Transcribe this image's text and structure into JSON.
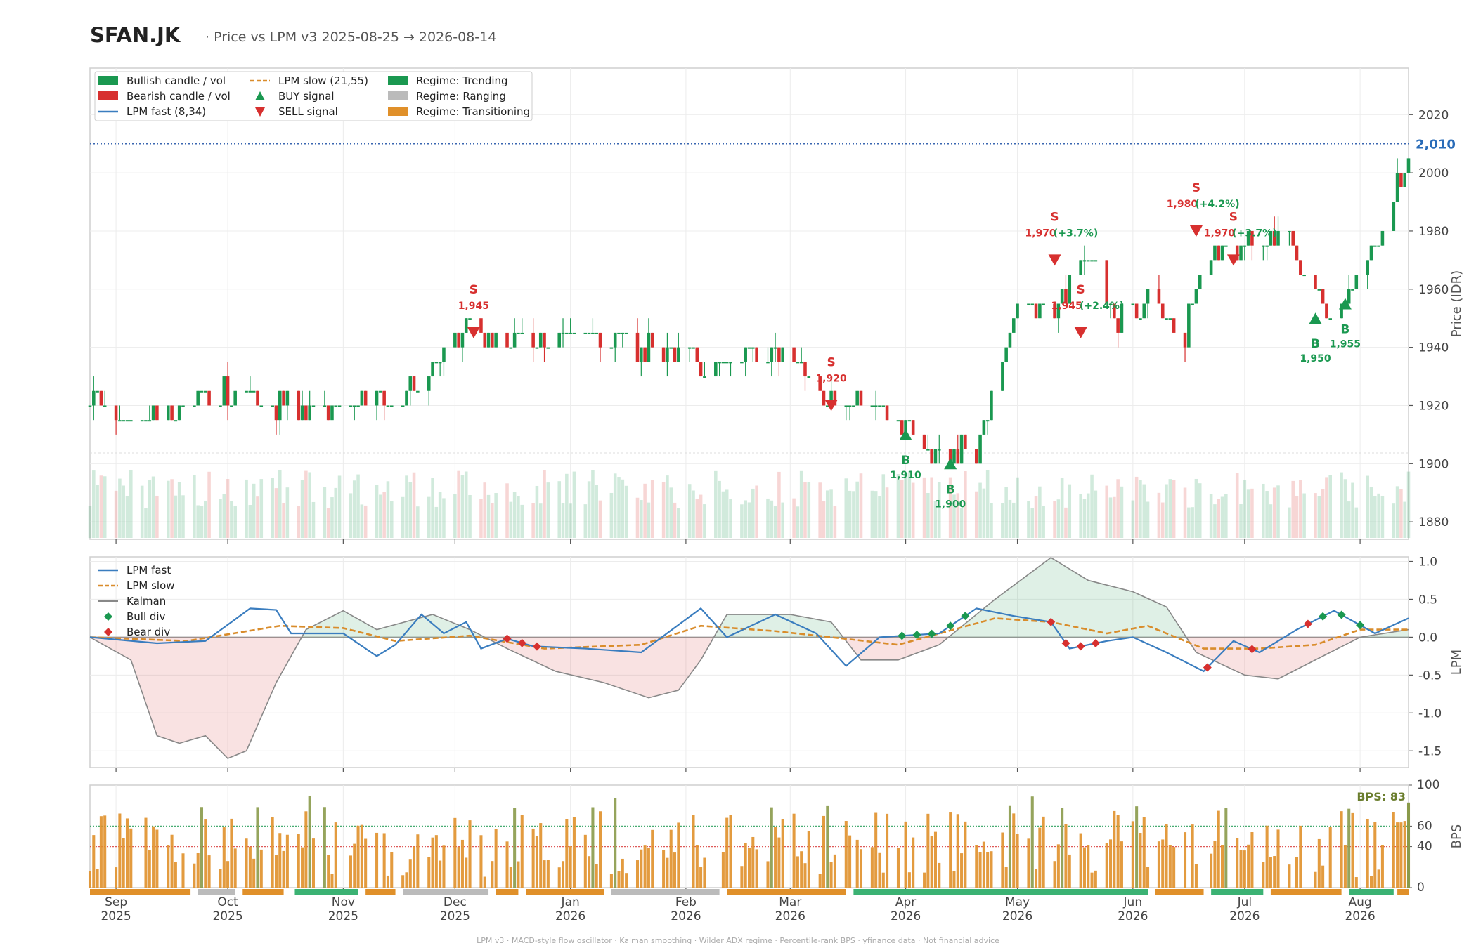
{
  "header": {
    "ticker": "SFAN.JK",
    "subtitle": "·  Price vs LPM v3  2025-08-25 → 2026-08-14"
  },
  "footer": "LPM v3  ·  MACD-style flow oscillator  ·  Kalman smoothing  ·  Wilder ADX regime  ·  Percentile-rank BPS  ·  yfinance data  ·  Not financial advice",
  "colors": {
    "bull": "#1a9850",
    "bear": "#d7302f",
    "fast": "#3a7dbf",
    "slow": "#d98c2b",
    "kalman": "#888888",
    "trending": "#3bb273",
    "ranging": "#bbbbbb",
    "transitioning": "#e0902a"
  },
  "legend_price": [
    {
      "label": "Bullish candle / vol",
      "icon": "green-rect"
    },
    {
      "label": "Bearish candle / vol",
      "icon": "red-rect"
    },
    {
      "label": "LPM fast (8,34)",
      "icon": "blue-line"
    },
    {
      "label": "LPM slow (21,55)",
      "icon": "orange-dashed-line"
    },
    {
      "label": "BUY signal",
      "icon": "green-triangle-up"
    },
    {
      "label": "SELL signal",
      "icon": "red-triangle-down"
    },
    {
      "label": "Regime: Trending",
      "icon": "green-rect"
    },
    {
      "label": "Regime: Ranging",
      "icon": "gray-rect"
    },
    {
      "label": "Regime: Transitioning",
      "icon": "orange-rect"
    }
  ],
  "legend_lpm": [
    {
      "label": "LPM fast",
      "icon": "blue-line"
    },
    {
      "label": "LPM slow",
      "icon": "orange-dashed-line"
    },
    {
      "label": "Kalman",
      "icon": "gray-line"
    },
    {
      "label": "Bull div",
      "icon": "green-diamond"
    },
    {
      "label": "Bear div",
      "icon": "red-diamond"
    }
  ],
  "last_price_label": "2,010",
  "bps_label": "BPS: 83",
  "chart_data": [
    {
      "type": "candlestick",
      "ylabel": "Price (IDR)",
      "ylim": [
        1874,
        2036
      ],
      "yticks": [
        1880,
        1900,
        1920,
        1940,
        1960,
        1980,
        2000,
        2020
      ],
      "last_price": 2010,
      "x_range": [
        "2025-08-25",
        "2026-08-14"
      ],
      "xticks": [
        {
          "month": "Sep",
          "year": "2025"
        },
        {
          "month": "Oct",
          "year": "2025"
        },
        {
          "month": "Nov",
          "year": "2025"
        },
        {
          "month": "Dec",
          "year": "2025"
        },
        {
          "month": "Jan",
          "year": "2026"
        },
        {
          "month": "Feb",
          "year": "2026"
        },
        {
          "month": "Mar",
          "year": "2026"
        },
        {
          "month": "Apr",
          "year": "2026"
        },
        {
          "month": "May",
          "year": "2026"
        },
        {
          "month": "Jun",
          "year": "2026"
        },
        {
          "month": "Jul",
          "year": "2026"
        },
        {
          "month": "Aug",
          "year": "2026"
        }
      ],
      "price_path": [
        [
          "2025-08-25",
          1920
        ],
        [
          "2025-09-10",
          1915
        ],
        [
          "2025-10-01",
          1925
        ],
        [
          "2025-10-25",
          1917
        ],
        [
          "2025-11-20",
          1925
        ],
        [
          "2025-12-01",
          1945
        ],
        [
          "2025-12-20",
          1943
        ],
        [
          "2026-01-15",
          1942
        ],
        [
          "2026-02-05",
          1935
        ],
        [
          "2026-03-01",
          1938
        ],
        [
          "2026-03-10",
          1922
        ],
        [
          "2026-03-28",
          1918
        ],
        [
          "2026-04-05",
          1905
        ],
        [
          "2026-04-20",
          1905
        ],
        [
          "2026-05-01",
          1955
        ],
        [
          "2026-05-12",
          1955
        ],
        [
          "2026-05-22",
          1970
        ],
        [
          "2026-05-28",
          1950
        ],
        [
          "2026-06-05",
          1955
        ],
        [
          "2026-06-15",
          1945
        ],
        [
          "2026-06-20",
          1975
        ],
        [
          "2026-06-30",
          1975
        ],
        [
          "2026-07-10",
          1980
        ],
        [
          "2026-07-20",
          1960
        ],
        [
          "2026-07-25",
          1950
        ],
        [
          "2026-08-01",
          1965
        ],
        [
          "2026-08-05",
          1975
        ],
        [
          "2026-08-10",
          1990
        ],
        [
          "2026-08-14",
          2010
        ]
      ],
      "signals": [
        {
          "type": "SELL",
          "date": "2025-12-06",
          "price": 1945,
          "letter": "S",
          "label": "1,945"
        },
        {
          "type": "SELL",
          "date": "2026-03-12",
          "price": 1920,
          "letter": "S",
          "label": "1,920"
        },
        {
          "type": "BUY",
          "date": "2026-04-01",
          "price": 1910,
          "letter": "B",
          "label": "1,910"
        },
        {
          "type": "BUY",
          "date": "2026-04-13",
          "price": 1900,
          "letter": "B",
          "label": "1,900"
        },
        {
          "type": "SELL",
          "date": "2026-05-11",
          "price": 1970,
          "letter": "S",
          "label": "1,970",
          "pct": "(+3.7%)"
        },
        {
          "type": "SELL",
          "date": "2026-05-18",
          "price": 1945,
          "letter": "S",
          "label": "1,945",
          "pct": "(+2.4%)"
        },
        {
          "type": "SELL",
          "date": "2026-06-18",
          "price": 1980,
          "letter": "S",
          "label": "1,980",
          "pct": "(+4.2%)"
        },
        {
          "type": "SELL",
          "date": "2026-06-28",
          "price": 1970,
          "letter": "S",
          "label": "1,970",
          "pct": "(+3.7%)"
        },
        {
          "type": "BUY",
          "date": "2026-07-20",
          "price": 1950,
          "letter": "B",
          "label": "1,950"
        },
        {
          "type": "BUY",
          "date": "2026-07-28",
          "price": 1955,
          "letter": "B",
          "label": "1,955"
        }
      ]
    },
    {
      "type": "line",
      "ylabel": "LPM",
      "ylim": [
        -1.72,
        1.06
      ],
      "yticks": [
        1.0,
        0.5,
        0.0,
        -0.5,
        -1.0,
        -1.5
      ],
      "series": [
        {
          "name": "LPM fast",
          "points": [
            [
              "2025-08-25",
              0.0
            ],
            [
              "2025-09-12",
              -0.08
            ],
            [
              "2025-09-25",
              -0.05
            ],
            [
              "2025-10-02",
              0.2
            ],
            [
              "2025-10-07",
              0.38
            ],
            [
              "2025-10-14",
              0.36
            ],
            [
              "2025-10-18",
              0.05
            ],
            [
              "2025-11-01",
              0.05
            ],
            [
              "2025-11-10",
              -0.25
            ],
            [
              "2025-11-15",
              -0.1
            ],
            [
              "2025-11-22",
              0.3
            ],
            [
              "2025-11-28",
              0.05
            ],
            [
              "2025-12-04",
              0.2
            ],
            [
              "2025-12-08",
              -0.15
            ],
            [
              "2025-12-15",
              -0.02
            ],
            [
              "2025-12-22",
              -0.12
            ],
            [
              "2026-01-05",
              -0.15
            ],
            [
              "2026-01-20",
              -0.2
            ],
            [
              "2026-02-05",
              0.38
            ],
            [
              "2026-02-12",
              0.0
            ],
            [
              "2026-02-25",
              0.3
            ],
            [
              "2026-03-08",
              0.05
            ],
            [
              "2026-03-16",
              -0.38
            ],
            [
              "2026-03-25",
              0.0
            ],
            [
              "2026-04-10",
              0.05
            ],
            [
              "2026-04-20",
              0.38
            ],
            [
              "2026-04-30",
              0.28
            ],
            [
              "2026-05-10",
              0.2
            ],
            [
              "2026-05-15",
              -0.15
            ],
            [
              "2026-05-25",
              -0.05
            ],
            [
              "2026-06-01",
              0.0
            ],
            [
              "2026-06-10",
              -0.2
            ],
            [
              "2026-06-20",
              -0.45
            ],
            [
              "2026-06-28",
              -0.05
            ],
            [
              "2026-07-05",
              -0.2
            ],
            [
              "2026-07-15",
              0.1
            ],
            [
              "2026-07-25",
              0.35
            ],
            [
              "2026-08-05",
              0.05
            ],
            [
              "2026-08-14",
              0.25
            ]
          ]
        },
        {
          "name": "LPM slow",
          "points": [
            [
              "2025-08-25",
              0.0
            ],
            [
              "2025-09-20",
              -0.05
            ],
            [
              "2025-10-15",
              0.15
            ],
            [
              "2025-11-01",
              0.12
            ],
            [
              "2025-11-15",
              -0.05
            ],
            [
              "2025-12-05",
              0.02
            ],
            [
              "2025-12-25",
              -0.15
            ],
            [
              "2026-01-20",
              -0.1
            ],
            [
              "2026-02-05",
              0.15
            ],
            [
              "2026-02-25",
              0.08
            ],
            [
              "2026-03-12",
              0.0
            ],
            [
              "2026-03-30",
              -0.1
            ],
            [
              "2026-04-25",
              0.25
            ],
            [
              "2026-05-10",
              0.2
            ],
            [
              "2026-05-25",
              0.05
            ],
            [
              "2026-06-05",
              0.15
            ],
            [
              "2026-06-20",
              -0.15
            ],
            [
              "2026-07-05",
              -0.15
            ],
            [
              "2026-07-20",
              -0.1
            ],
            [
              "2026-08-01",
              0.1
            ],
            [
              "2026-08-14",
              0.1
            ]
          ]
        },
        {
          "name": "Kalman",
          "points": [
            [
              "2025-08-25",
              0.0
            ],
            [
              "2025-09-05",
              -0.3
            ],
            [
              "2025-09-12",
              -1.3
            ],
            [
              "2025-09-18",
              -1.4
            ],
            [
              "2025-09-25",
              -1.3
            ],
            [
              "2025-10-01",
              -1.6
            ],
            [
              "2025-10-06",
              -1.5
            ],
            [
              "2025-10-14",
              -0.6
            ],
            [
              "2025-10-22",
              0.1
            ],
            [
              "2025-11-01",
              0.35
            ],
            [
              "2025-11-10",
              0.1
            ],
            [
              "2025-11-25",
              0.3
            ],
            [
              "2025-12-05",
              0.1
            ],
            [
              "2025-12-15",
              -0.15
            ],
            [
              "2025-12-28",
              -0.45
            ],
            [
              "2026-01-10",
              -0.6
            ],
            [
              "2026-01-22",
              -0.8
            ],
            [
              "2026-01-30",
              -0.7
            ],
            [
              "2026-02-05",
              -0.3
            ],
            [
              "2026-02-12",
              0.3
            ],
            [
              "2026-03-01",
              0.3
            ],
            [
              "2026-03-12",
              0.2
            ],
            [
              "2026-03-20",
              -0.3
            ],
            [
              "2026-03-30",
              -0.3
            ],
            [
              "2026-04-10",
              -0.1
            ],
            [
              "2026-04-25",
              0.5
            ],
            [
              "2026-05-10",
              1.05
            ],
            [
              "2026-05-20",
              0.75
            ],
            [
              "2026-06-01",
              0.6
            ],
            [
              "2026-06-10",
              0.4
            ],
            [
              "2026-06-18",
              -0.2
            ],
            [
              "2026-07-01",
              -0.5
            ],
            [
              "2026-07-10",
              -0.55
            ],
            [
              "2026-07-20",
              -0.3
            ],
            [
              "2026-08-01",
              0.0
            ],
            [
              "2026-08-14",
              0.1
            ]
          ]
        }
      ],
      "divergences": [
        {
          "type": "Bear div",
          "dates": [
            "2025-12-15",
            "2025-12-19",
            "2025-12-23"
          ]
        },
        {
          "type": "Bull div",
          "dates": [
            "2026-03-31",
            "2026-04-04",
            "2026-04-08"
          ]
        },
        {
          "type": "Bull div",
          "dates": [
            "2026-04-13",
            "2026-04-17"
          ]
        },
        {
          "type": "Bear div",
          "dates": [
            "2026-05-10",
            "2026-05-14",
            "2026-05-18",
            "2026-05-22"
          ]
        },
        {
          "type": "Bear div",
          "dates": [
            "2026-06-21",
            "2026-07-03",
            "2026-07-18"
          ]
        },
        {
          "type": "Bull div",
          "dates": [
            "2026-07-22",
            "2026-07-27",
            "2026-08-01"
          ]
        }
      ]
    },
    {
      "type": "bar",
      "ylabel": "BPS",
      "ylim": [
        0,
        100
      ],
      "yticks": [
        0,
        40,
        60,
        100
      ],
      "reference_lines": [
        60,
        40
      ],
      "last_value": 83,
      "regimes": [
        {
          "regime": "Transitioning",
          "start": "2025-08-25",
          "end": "2025-09-21"
        },
        {
          "regime": "Ranging",
          "start": "2025-09-23",
          "end": "2025-10-03"
        },
        {
          "regime": "Transitioning",
          "start": "2025-10-05",
          "end": "2025-10-16"
        },
        {
          "regime": "Trending",
          "start": "2025-10-19",
          "end": "2025-11-05"
        },
        {
          "regime": "Transitioning",
          "start": "2025-11-07",
          "end": "2025-11-15"
        },
        {
          "regime": "Ranging",
          "start": "2025-11-17",
          "end": "2025-12-10"
        },
        {
          "regime": "Transitioning",
          "start": "2025-12-12",
          "end": "2025-12-18"
        },
        {
          "regime": "Transitioning",
          "start": "2025-12-20",
          "end": "2026-01-10"
        },
        {
          "regime": "Ranging",
          "start": "2026-01-12",
          "end": "2026-02-10"
        },
        {
          "regime": "Transitioning",
          "start": "2026-02-12",
          "end": "2026-03-16"
        },
        {
          "regime": "Trending",
          "start": "2026-03-18",
          "end": "2026-06-05"
        },
        {
          "regime": "Transitioning",
          "start": "2026-06-07",
          "end": "2026-06-20"
        },
        {
          "regime": "Trending",
          "start": "2026-06-22",
          "end": "2026-07-06"
        },
        {
          "regime": "Transitioning",
          "start": "2026-07-08",
          "end": "2026-07-27"
        },
        {
          "regime": "Trending",
          "start": "2026-07-29",
          "end": "2026-08-10"
        },
        {
          "regime": "Transitioning",
          "start": "2026-08-11",
          "end": "2026-08-14"
        }
      ]
    }
  ]
}
